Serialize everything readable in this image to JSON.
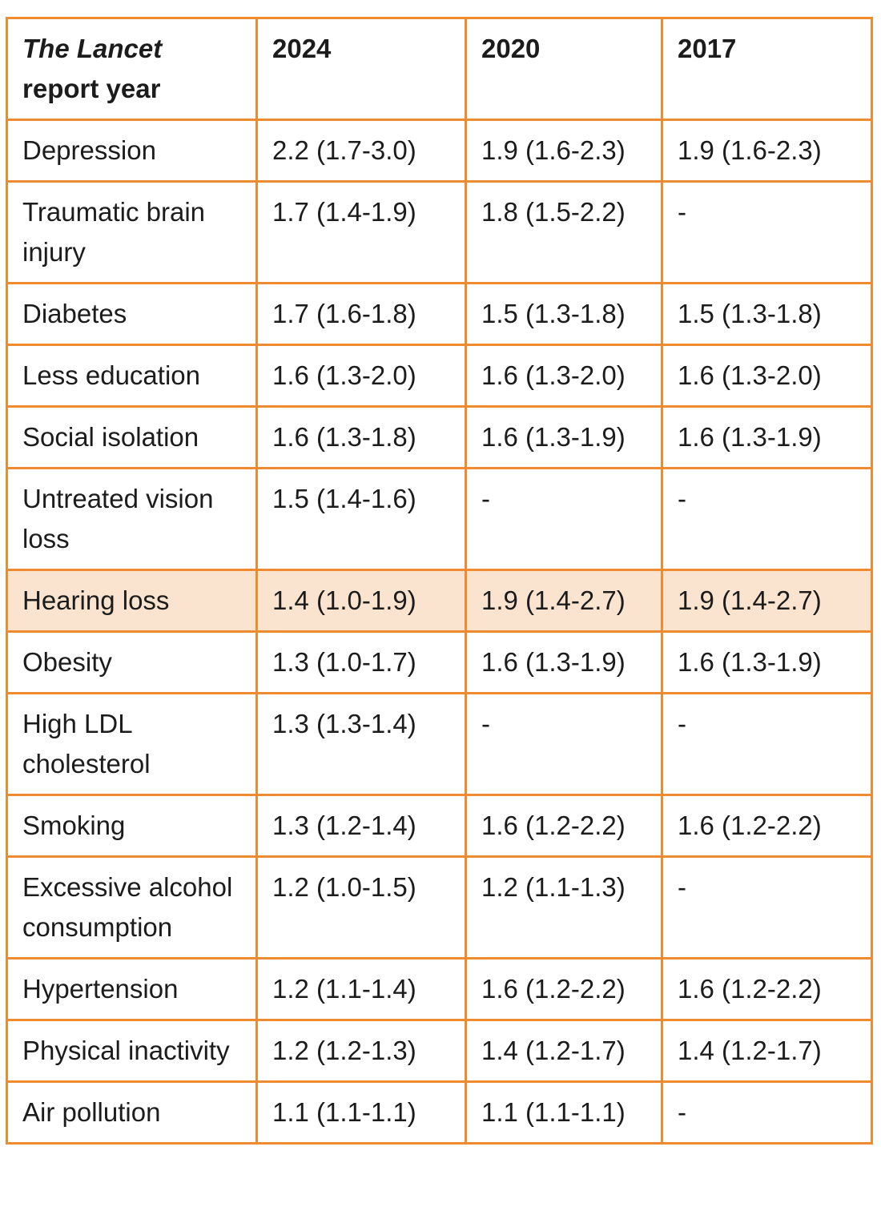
{
  "header": {
    "title_italic": "The Lancet",
    "title_rest": "report year",
    "years": [
      "2024",
      "2020",
      "2017"
    ]
  },
  "highlight_color": "#fbe4cf",
  "border_color": "#ee8a30",
  "rows": [
    {
      "factor": "Depression",
      "v2024": "2.2 (1.7-3.0)",
      "v2020": "1.9 (1.6-2.3)",
      "v2017": "1.9 (1.6-2.3)"
    },
    {
      "factor": "Traumatic brain injury",
      "v2024": "1.7 (1.4-1.9)",
      "v2020": "1.8 (1.5-2.2)",
      "v2017": "-"
    },
    {
      "factor": "Diabetes",
      "v2024": "1.7 (1.6-1.8)",
      "v2020": "1.5 (1.3-1.8)",
      "v2017": "1.5 (1.3-1.8)"
    },
    {
      "factor": "Less education",
      "v2024": "1.6 (1.3-2.0)",
      "v2020": "1.6 (1.3-2.0)",
      "v2017": "1.6 (1.3-2.0)"
    },
    {
      "factor": "Social isolation",
      "v2024": "1.6 (1.3-1.8)",
      "v2020": "1.6 (1.3-1.9)",
      "v2017": "1.6 (1.3-1.9)"
    },
    {
      "factor": "Untreated vision loss",
      "v2024": "1.5 (1.4-1.6)",
      "v2020": "-",
      "v2017": "-"
    },
    {
      "factor": "Hearing loss",
      "v2024": "1.4 (1.0-1.9)",
      "v2020": "1.9 (1.4-2.7)",
      "v2017": "1.9 (1.4-2.7)",
      "highlighted": true
    },
    {
      "factor": "Obesity",
      "v2024": "1.3 (1.0-1.7)",
      "v2020": "1.6 (1.3-1.9)",
      "v2017": "1.6 (1.3-1.9)"
    },
    {
      "factor": "High LDL cholesterol",
      "v2024": "1.3 (1.3-1.4)",
      "v2020": "-",
      "v2017": "-"
    },
    {
      "factor": "Smoking",
      "v2024": "1.3 (1.2-1.4)",
      "v2020": "1.6 (1.2-2.2)",
      "v2017": "1.6 (1.2-2.2)"
    },
    {
      "factor": "Excessive alcohol consumption",
      "v2024": "1.2 (1.0-1.5)",
      "v2020": "1.2 (1.1-1.3)",
      "v2017": "-"
    },
    {
      "factor": "Hypertension",
      "v2024": "1.2 (1.1-1.4)",
      "v2020": "1.6 (1.2-2.2)",
      "v2017": "1.6 (1.2-2.2)"
    },
    {
      "factor": "Physical inactivity",
      "v2024": "1.2 (1.2-1.3)",
      "v2020": "1.4 (1.2-1.7)",
      "v2017": "1.4 (1.2-1.7)"
    },
    {
      "factor": "Air pollution",
      "v2024": "1.1 (1.1-1.1)",
      "v2020": "1.1 (1.1-1.1)",
      "v2017": "-"
    }
  ]
}
